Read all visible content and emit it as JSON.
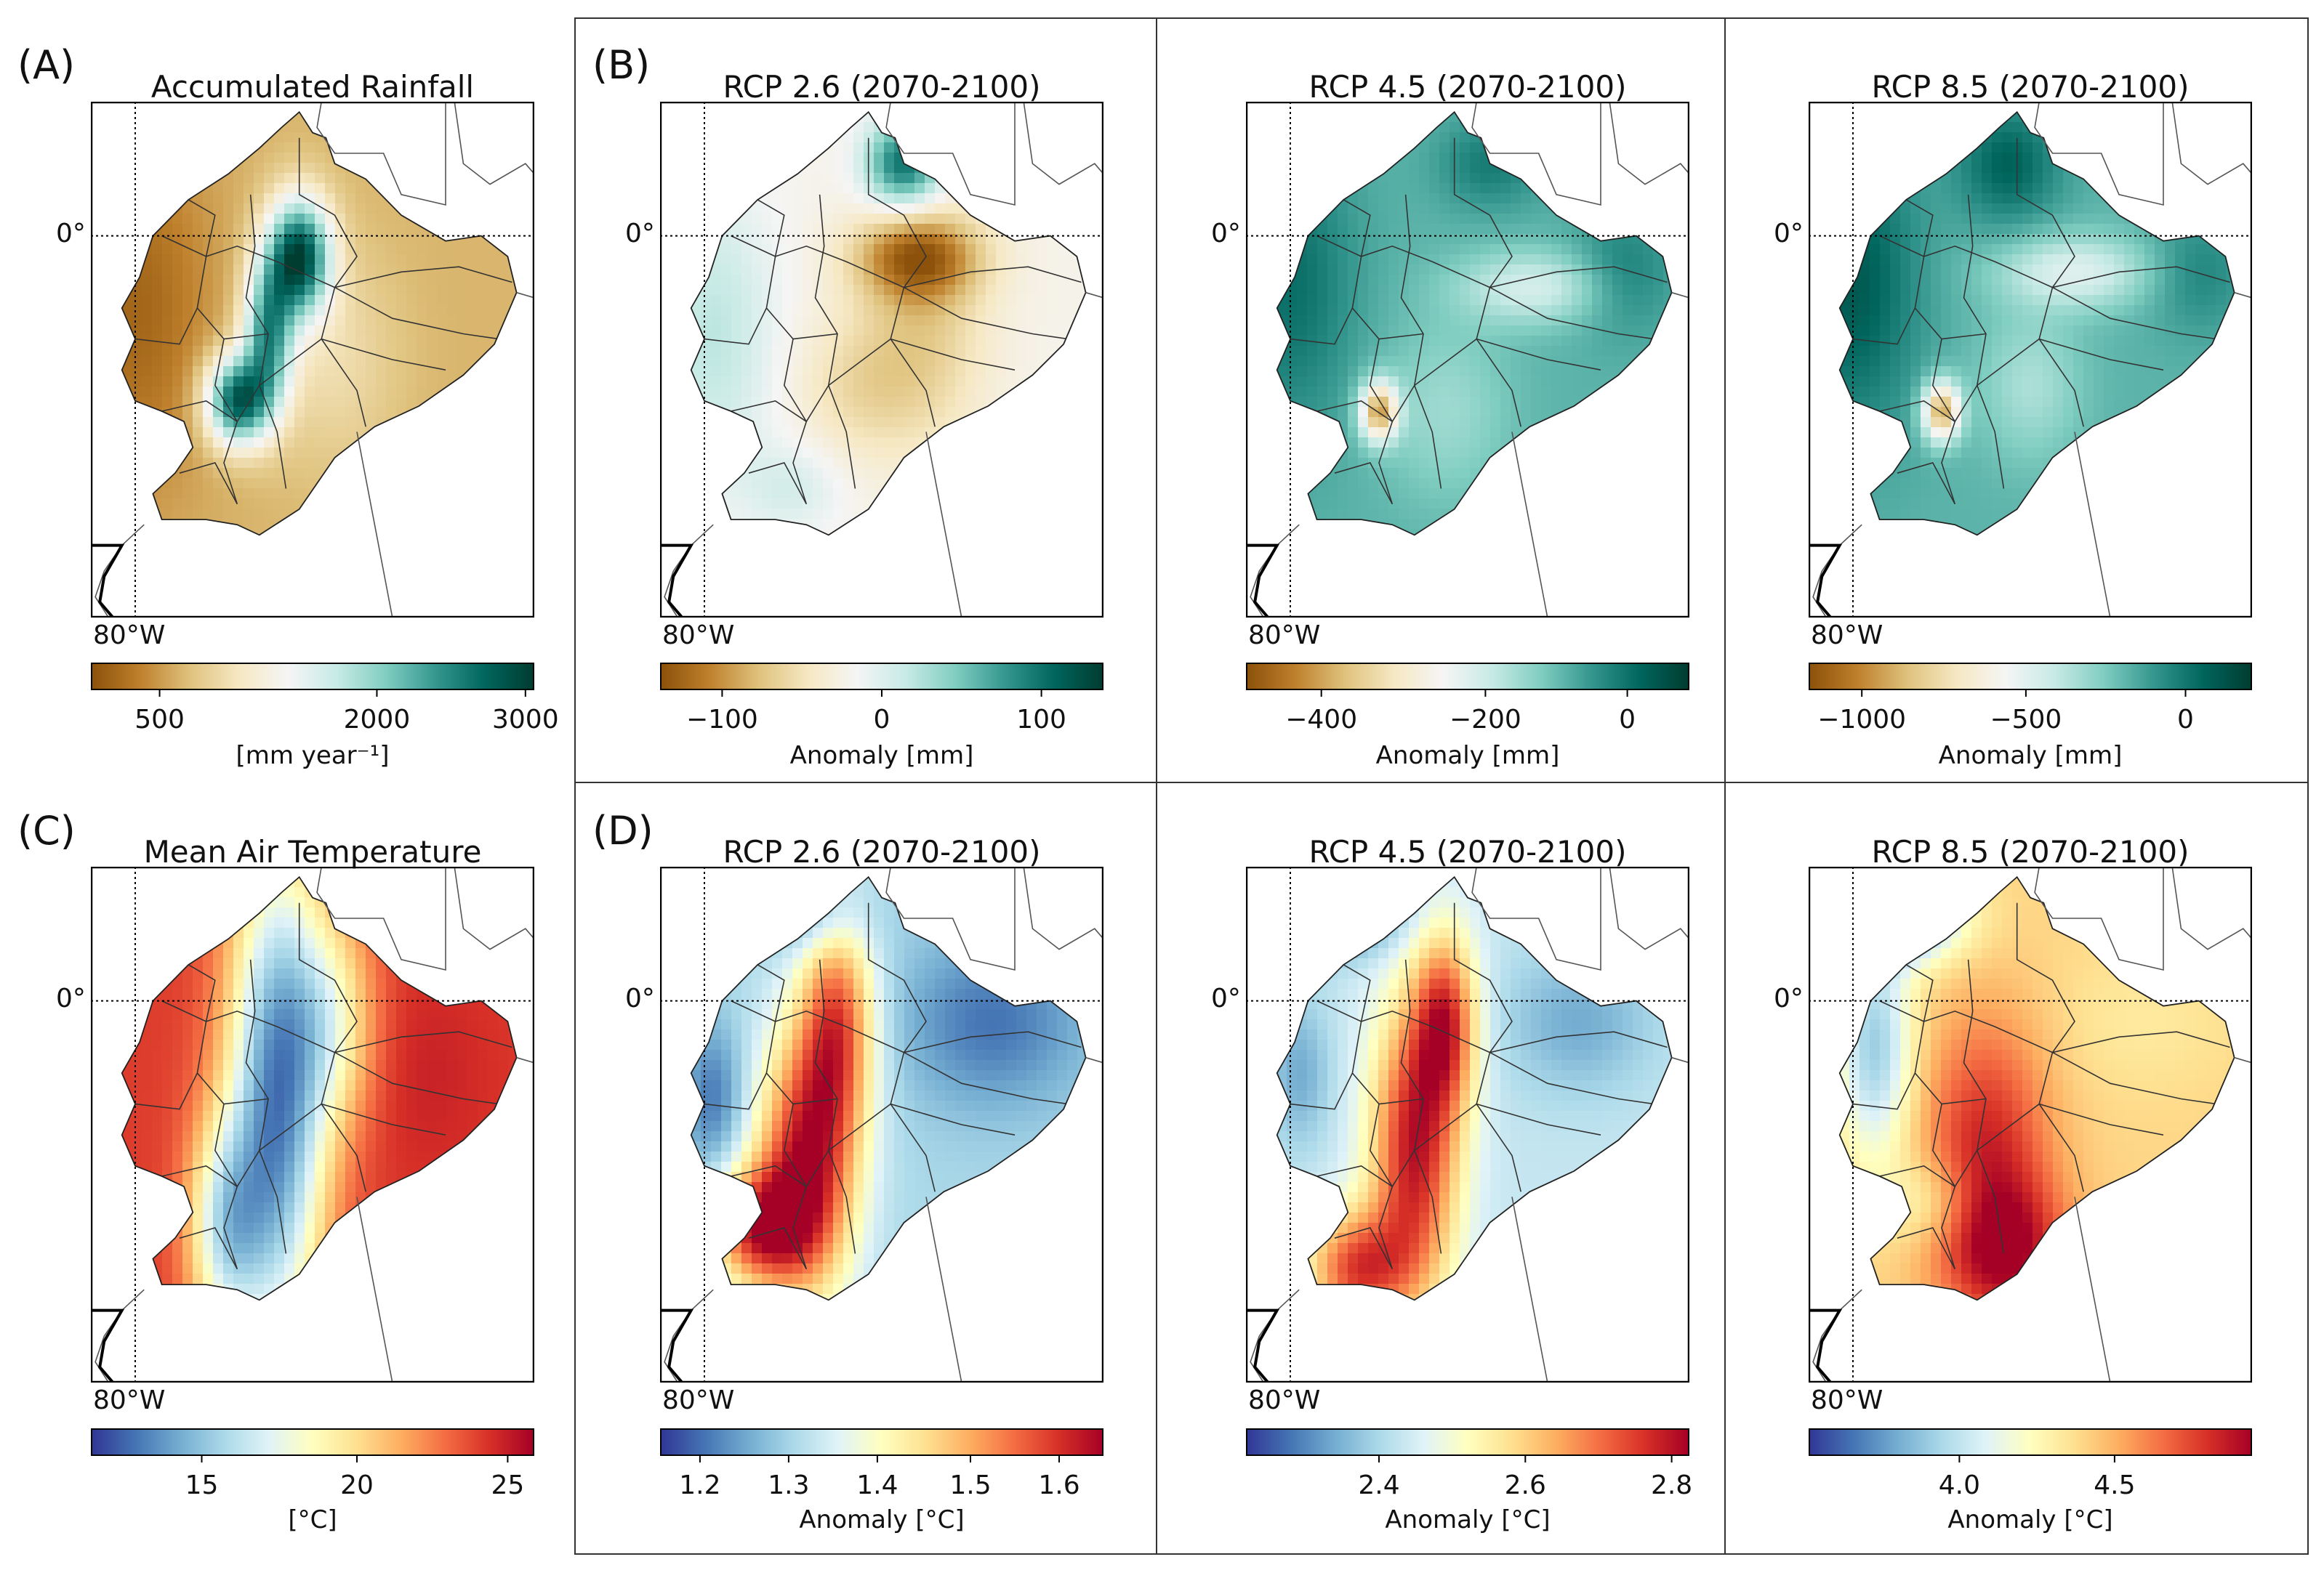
{
  "figure": {
    "panel_labels": {
      "A": "(A)",
      "B": "(B)",
      "C": "(C)",
      "D": "(D)"
    },
    "lon_label": "80°W",
    "lat_label": "0°",
    "panels": [
      {
        "id": "A",
        "title": "Accumulated Rainfall",
        "palette": "rain",
        "pattern": "hist_rain",
        "colorbar": {
          "ticks": [
            "500",
            "2000",
            "3000"
          ],
          "tick_pos": [
            0.155,
            0.645,
            0.98
          ],
          "label": "[mm year⁻¹]"
        }
      },
      {
        "id": "B26",
        "title": "RCP 2.6 (2070-2100)",
        "palette": "rain",
        "pattern": "rain_26",
        "colorbar": {
          "ticks": [
            "−100",
            "0",
            "100"
          ],
          "tick_pos": [
            0.14,
            0.5,
            0.86
          ],
          "label": "Anomaly [mm]"
        }
      },
      {
        "id": "B45",
        "title": "RCP 4.5 (2070-2100)",
        "palette": "rain",
        "pattern": "rain_45",
        "colorbar": {
          "ticks": [
            "−400",
            "−200",
            "0"
          ],
          "tick_pos": [
            0.17,
            0.54,
            0.86
          ],
          "label": "Anomaly [mm]"
        }
      },
      {
        "id": "B85",
        "title": "RCP 8.5 (2070-2100)",
        "palette": "rain",
        "pattern": "rain_85",
        "colorbar": {
          "ticks": [
            "−1000",
            "−500",
            "0"
          ],
          "tick_pos": [
            0.12,
            0.49,
            0.85
          ],
          "label": "Anomaly [mm]"
        }
      },
      {
        "id": "C",
        "title": "Mean Air Temperature",
        "palette": "temp",
        "pattern": "hist_temp",
        "colorbar": {
          "ticks": [
            "15",
            "20",
            "25"
          ],
          "tick_pos": [
            0.25,
            0.6,
            0.94
          ],
          "label": "[°C]"
        }
      },
      {
        "id": "D26",
        "title": "RCP 2.6 (2070-2100)",
        "palette": "temp",
        "pattern": "temp_26",
        "colorbar": {
          "ticks": [
            "1.2",
            "1.3",
            "1.4",
            "1.5",
            "1.6"
          ],
          "tick_pos": [
            0.09,
            0.29,
            0.49,
            0.7,
            0.9
          ],
          "label": "Anomaly [°C]"
        }
      },
      {
        "id": "D45",
        "title": "RCP 4.5 (2070-2100)",
        "palette": "temp",
        "pattern": "temp_45",
        "colorbar": {
          "ticks": [
            "2.4",
            "2.6",
            "2.8"
          ],
          "tick_pos": [
            0.3,
            0.63,
            0.96
          ],
          "label": "Anomaly [°C]"
        }
      },
      {
        "id": "D85",
        "title": "RCP 8.5 (2070-2100)",
        "palette": "temp",
        "pattern": "temp_85",
        "colorbar": {
          "ticks": [
            "4.0",
            "4.5"
          ],
          "tick_pos": [
            0.34,
            0.69
          ],
          "label": "Anomaly [°C]"
        }
      }
    ]
  },
  "palettes": {
    "rain": [
      "#8c510a",
      "#bf812d",
      "#dfc27d",
      "#f6e8c3",
      "#f5f5f5",
      "#c7eae5",
      "#80cdc1",
      "#35978f",
      "#01665e",
      "#003c30"
    ],
    "temp": [
      "#313695",
      "#4575b4",
      "#74add1",
      "#abd9e9",
      "#e0f3f8",
      "#ffffbf",
      "#fee090",
      "#fdae61",
      "#f46d43",
      "#d73027",
      "#a50026"
    ]
  }
}
